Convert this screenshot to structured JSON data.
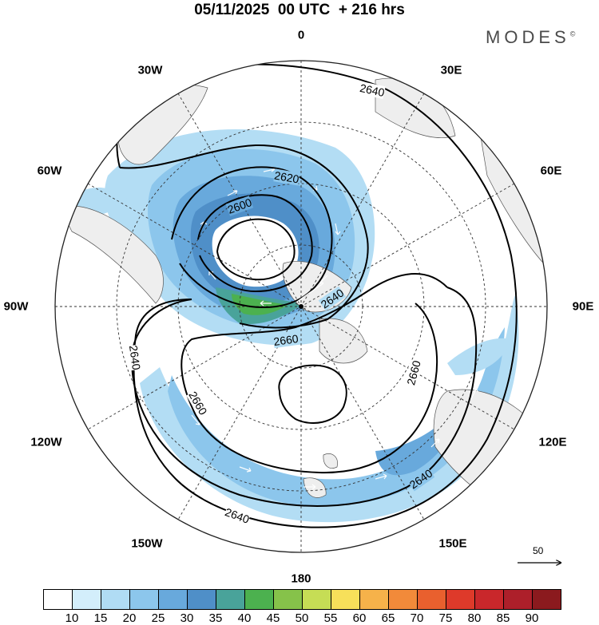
{
  "title": "05/11/2025  00 UTC  + 216 hrs",
  "brand": "MODES",
  "brand_mark": "©",
  "longitude_labels": {
    "n0": "0",
    "e30": "30E",
    "e60": "60E",
    "e90": "90E",
    "e120": "120E",
    "e150": "150E",
    "s180": "180",
    "w150": "150W",
    "w120": "120W",
    "w90": "90W",
    "w60": "60W",
    "w30": "30W"
  },
  "contour_labels": [
    "2640",
    "2620",
    "2600",
    "2640",
    "2660",
    "2640",
    "2660",
    "2660",
    "2640",
    "2640"
  ],
  "vector_scale": {
    "label": "50"
  },
  "colorbar": {
    "labels": [
      "10",
      "15",
      "20",
      "25",
      "30",
      "35",
      "40",
      "45",
      "50",
      "55",
      "60",
      "65",
      "70",
      "75",
      "80",
      "85",
      "90"
    ],
    "colors": [
      "#ffffff",
      "#d3eefb",
      "#b0dcf4",
      "#8cc6ec",
      "#68a9dc",
      "#4f8fc8",
      "#49a39a",
      "#4cb14f",
      "#86c24a",
      "#c6dd55",
      "#f7e05a",
      "#f6b24a",
      "#f28a3a",
      "#e9602e",
      "#de3a2a",
      "#c9272b",
      "#ad1f2a",
      "#8b1a1e"
    ]
  }
}
